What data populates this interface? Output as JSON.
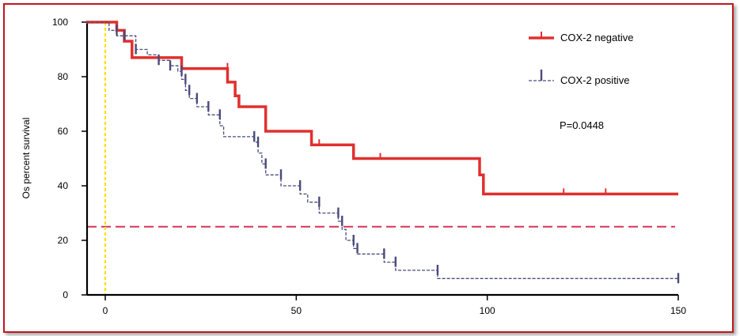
{
  "chart_data": {
    "type": "line",
    "title": "",
    "xlabel": "",
    "ylabel": "Os percent survival",
    "xlim": [
      0,
      150
    ],
    "ylim": [
      0,
      100
    ],
    "x_ticks": [
      "0",
      "50",
      "100",
      "150"
    ],
    "y_ticks": [
      "0",
      "20",
      "40",
      "60",
      "80",
      "100"
    ],
    "x_tick_values": [
      0,
      50,
      100,
      150
    ],
    "y_tick_values": [
      0,
      20,
      40,
      60,
      80,
      100
    ],
    "grid": false,
    "legend_position": "top-right",
    "annotation": "P=0.0448",
    "reference_lines": [
      {
        "orientation": "horizontal",
        "value": 25,
        "color": "#d6335a",
        "style": "dashed"
      },
      {
        "orientation": "vertical",
        "value": 0,
        "color": "#ffe000",
        "style": "dotted"
      }
    ],
    "series": [
      {
        "name": "COX-2 negative",
        "color": "#e0302e",
        "style": "solid",
        "x": [
          -5,
          3,
          3,
          5,
          5,
          7,
          7,
          20,
          20,
          32,
          32,
          34,
          34,
          35,
          35,
          42,
          42,
          54,
          54,
          65,
          65,
          98,
          98,
          99,
          99,
          150
        ],
        "y": [
          100,
          100,
          97,
          97,
          93,
          93,
          87,
          87,
          83,
          83,
          78,
          78,
          73,
          73,
          69,
          69,
          60,
          60,
          55,
          55,
          50,
          50,
          44,
          44,
          37,
          37
        ],
        "censor_x": [
          32,
          56,
          72,
          120,
          131
        ],
        "censor_y": [
          83,
          55,
          50,
          37,
          37
        ]
      },
      {
        "name": "COX-2 positive",
        "color": "#4a4a7c",
        "style": "dashed",
        "x": [
          -5,
          1,
          1,
          3,
          3,
          8,
          8,
          11,
          11,
          14,
          14,
          17,
          17,
          19,
          19,
          20,
          20,
          21,
          21,
          22,
          22,
          24,
          24,
          27,
          27,
          30,
          30,
          31,
          31,
          39,
          39,
          40,
          40,
          41,
          41,
          42,
          42,
          46,
          46,
          51,
          51,
          53,
          53,
          56,
          56,
          61,
          61,
          62,
          62,
          63,
          63,
          65,
          65,
          66,
          66,
          73,
          73,
          76,
          76,
          87,
          87,
          150
        ],
        "y": [
          100,
          100,
          97,
          97,
          95,
          95,
          90,
          90,
          88,
          88,
          86,
          86,
          84,
          84,
          82,
          82,
          79,
          79,
          75,
          75,
          72,
          72,
          69,
          69,
          66,
          66,
          62,
          62,
          58,
          58,
          56,
          56,
          52,
          52,
          48,
          48,
          44,
          44,
          40,
          40,
          37,
          37,
          34,
          34,
          30,
          30,
          27,
          27,
          24,
          24,
          20,
          20,
          17,
          17,
          15,
          15,
          12,
          12,
          9,
          9,
          6,
          6
        ],
        "censor_x": [
          3,
          5,
          8,
          14,
          17,
          20,
          21,
          22,
          24,
          27,
          30,
          39,
          40,
          42,
          46,
          51,
          56,
          61,
          62,
          65,
          66,
          73,
          76,
          87,
          150
        ],
        "censor_y": [
          97,
          95,
          90,
          86,
          84,
          82,
          79,
          75,
          72,
          69,
          66,
          58,
          56,
          48,
          44,
          40,
          34,
          30,
          27,
          20,
          17,
          15,
          12,
          9,
          6
        ]
      }
    ]
  }
}
